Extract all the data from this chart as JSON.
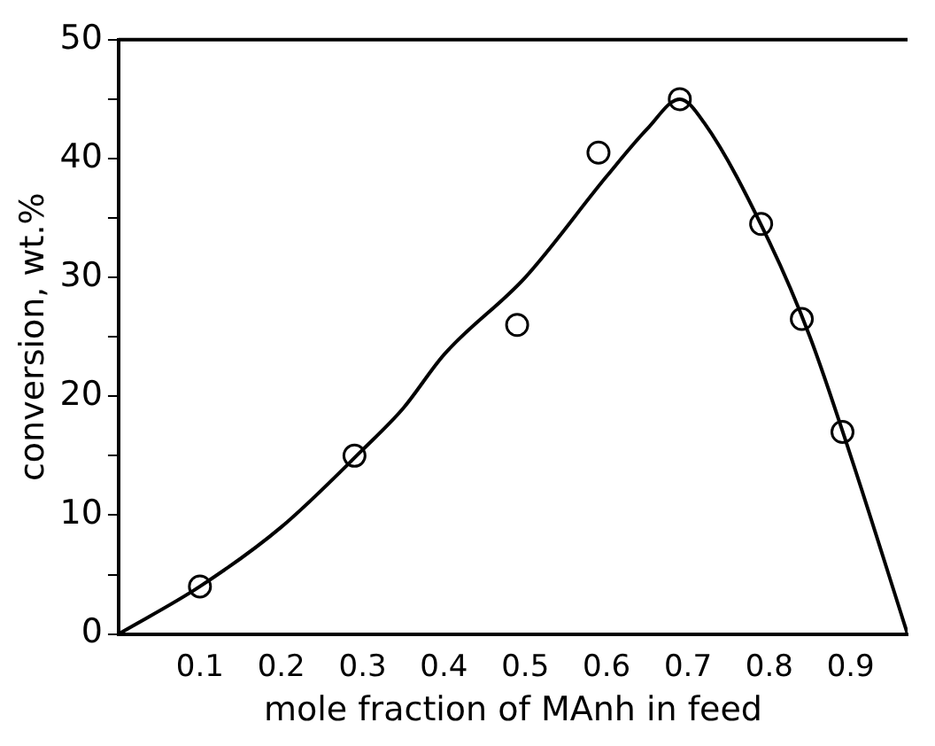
{
  "chart_data": {
    "type": "scatter",
    "xlabel": "mole fraction of MAnh in feed",
    "ylabel": "conversion, wt.%",
    "xlim": [
      0,
      0.97
    ],
    "xticks": [
      0.1,
      0.2,
      0.3,
      0.4,
      0.5,
      0.6,
      0.7,
      0.8,
      0.9
    ],
    "ylim": [
      0,
      50
    ],
    "yticks": [
      0,
      {
        "value": 5,
        "label": null
      },
      10,
      {
        "value": 15,
        "label": null
      },
      20,
      {
        "value": 25,
        "label": null
      },
      30,
      {
        "value": 35,
        "label": null
      },
      40,
      {
        "value": 45,
        "label": null
      },
      50
    ],
    "grid": false,
    "legend": false,
    "series": [
      {
        "color": "#000000",
        "marker": "circle",
        "x": [
          0.1,
          0.29,
          0.49,
          0.59,
          0.69,
          0.79,
          0.84,
          0.89
        ],
        "values": [
          4,
          15,
          26,
          40.5,
          45,
          34.5,
          26.5,
          17
        ]
      },
      {
        "type": "line",
        "color": "#000000",
        "marker": "none",
        "x": [
          0,
          0.1,
          0.2,
          0.3,
          0.35,
          0.4,
          0.5,
          0.6,
          0.65,
          0.69,
          0.72,
          0.8,
          0.85,
          0.9,
          0.97
        ],
        "values": [
          0,
          4,
          9,
          15.5,
          19,
          23.5,
          30,
          38.5,
          42.5,
          45,
          43,
          33,
          25,
          15,
          0
        ]
      }
    ]
  }
}
